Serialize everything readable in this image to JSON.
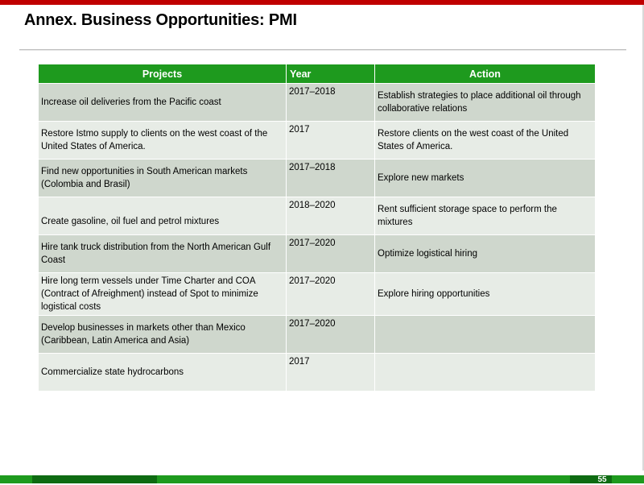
{
  "title": "Annex. Business Opportunities: PMI",
  "table": {
    "headers": {
      "projects": "Projects",
      "year": "Year",
      "action": "Action"
    },
    "rows": [
      {
        "project": "Increase oil deliveries from the Pacific coast",
        "year": "2017–2018",
        "action": "Establish strategies to place additional oil through collaborative relations"
      },
      {
        "project": "Restore Istmo supply to clients on the west coast of the United States of America.",
        "year": "2017",
        "action": "Restore clients on the west coast of the United States of America."
      },
      {
        "project": "Find new opportunities in South American markets (Colombia and Brasil)",
        "year": "2017–2018",
        "action": "Explore new markets"
      },
      {
        "project": "Create gasoline, oil fuel and petrol mixtures",
        "year": "2018–2020",
        "action": "Rent sufficient storage space to perform the mixtures"
      },
      {
        "project": "Hire tank truck distribution from the North American Gulf Coast",
        "year": "2017–2020",
        "action": "Optimize logistical hiring"
      },
      {
        "project": "Hire long term vessels under Time Charter and COA (Contract of Afreighment) instead of Spot to minimize logistical costs",
        "year": "2017–2020",
        "action": "Explore hiring opportunities"
      },
      {
        "project": "Develop businesses in markets other than Mexico (Caribbean, Latin America and Asia)",
        "year": "2017–2020",
        "action": ""
      },
      {
        "project": "Commercialize state hydrocarbons",
        "year": "2017",
        "action": ""
      }
    ]
  },
  "footer": {
    "page_number": "55"
  }
}
